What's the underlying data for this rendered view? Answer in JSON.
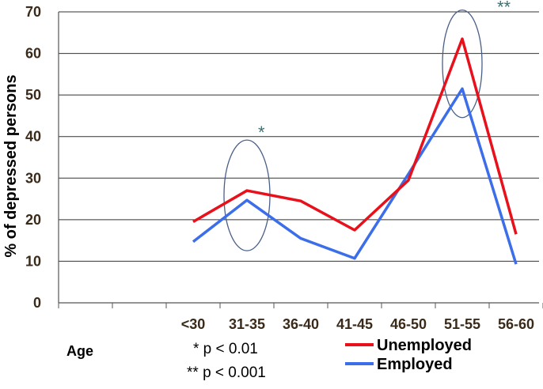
{
  "chart_data": {
    "type": "line",
    "categories": [
      "<30",
      "31-35",
      "36-40",
      "41-45",
      "46-50",
      "51-55",
      "56-60"
    ],
    "series": [
      {
        "name": "Unemployed",
        "color": "#e8101a",
        "values": [
          19.5,
          27,
          24.5,
          17.5,
          29.5,
          63.5,
          16.5
        ]
      },
      {
        "name": "Employed",
        "color": "#3d6eea",
        "values": [
          14.7,
          24.7,
          15.5,
          10.7,
          31,
          51.5,
          9.3
        ]
      }
    ],
    "ylabel": "% of depressed persons",
    "xlabel": "Age",
    "ylim": [
      0,
      70
    ],
    "yticks": [
      0,
      10,
      20,
      30,
      40,
      50,
      60,
      70
    ],
    "grid": true,
    "legend_position": "bottom-right",
    "annotations": [
      {
        "category": "31-35",
        "marker": "*"
      },
      {
        "category": "51-55",
        "marker": "**"
      }
    ],
    "notes": [
      "* p < 0.01",
      "** p < 0.001"
    ]
  }
}
